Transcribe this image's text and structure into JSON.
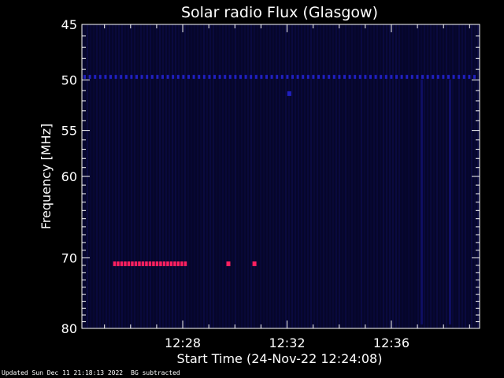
{
  "chart_data": {
    "type": "heatmap",
    "title": "Solar radio Flux (Glasgow)",
    "xlabel": "Start Time (24-Nov-22 12:24:08)",
    "ylabel": "Frequency [MHz]",
    "x_ticks": [
      "12:28",
      "12:32",
      "12:36"
    ],
    "y_ticks": [
      "45",
      "50",
      "55",
      "60",
      "70",
      "80"
    ],
    "ylim": [
      45,
      80
    ],
    "y_scale": "log",
    "xlim": [
      "12:24:08",
      "12:39:23"
    ],
    "grid": false,
    "colors": {
      "background": "#000000",
      "plot_background": "#06062a",
      "signal_low": "#2020c0",
      "signal_high": "#ff2060"
    },
    "features": [
      {
        "type": "horizontal_band",
        "frequency": 49.7,
        "intensity": "medium"
      },
      {
        "type": "horizontal_band",
        "frequency": 70.8,
        "time_start": "12:25:20",
        "time_end": "12:28:10",
        "intensity": "high"
      },
      {
        "type": "point",
        "frequency": 70.8,
        "time": "12:29:45",
        "intensity": "high"
      },
      {
        "type": "point",
        "frequency": 70.8,
        "time": "12:30:45",
        "intensity": "high"
      },
      {
        "type": "point",
        "frequency": 51.3,
        "time": "12:32:05",
        "intensity": "medium"
      },
      {
        "type": "vertical_band",
        "time": "12:37:10",
        "intensity": "low"
      },
      {
        "type": "vertical_band",
        "time": "12:38:15",
        "intensity": "low"
      }
    ]
  },
  "footer": {
    "updated": "Updated Sun Dec 11 21:18:13 2022",
    "note": "BG subtracted"
  }
}
